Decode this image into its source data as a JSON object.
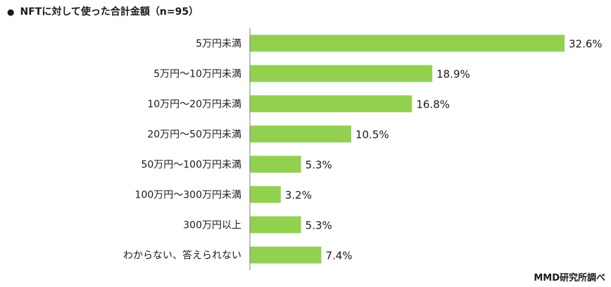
{
  "title": "NFTに対して使った合計金額（n=95）",
  "source": "MMD研究所調べ",
  "colors": {
    "bar": "#92d050",
    "axis": "#7f7f7f"
  },
  "chart_data": {
    "type": "bar",
    "orientation": "horizontal",
    "title": "NFTに対して使った合計金額（n=95）",
    "categories": [
      "5万円未満",
      "5万円～10万円未満",
      "10万円～20万円未満",
      "20万円～50万円未満",
      "50万円～100万円未満",
      "100万円～300万円未満",
      "300万円以上",
      "わからない、答えられない"
    ],
    "values": [
      32.6,
      18.9,
      16.8,
      10.5,
      5.3,
      3.2,
      5.3,
      7.4
    ],
    "value_labels": [
      "32.6%",
      "18.9%",
      "16.8%",
      "10.5%",
      "5.3%",
      "3.2%",
      "5.3%",
      "7.4%"
    ],
    "unit": "%",
    "xlim": [
      0,
      32.6
    ],
    "grid": false,
    "legend": "none"
  }
}
